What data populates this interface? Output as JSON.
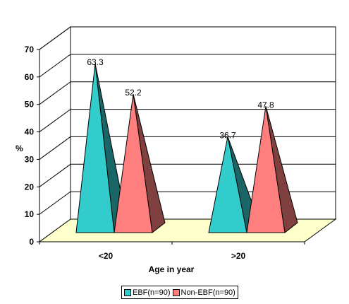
{
  "chart_data": {
    "type": "bar",
    "variant": "3d-pyramid",
    "categories": [
      "<20",
      ">20"
    ],
    "series": [
      {
        "name": "EBF(n=90)",
        "values": [
          63.3,
          36.7
        ],
        "color": "#33CCCC"
      },
      {
        "name": "Non-EBF(n=90)",
        "values": [
          52.2,
          47.8
        ],
        "color": "#FF7F7F"
      }
    ],
    "data_labels": [
      "63.3",
      "52.2",
      "36.7",
      "47.8"
    ],
    "xlabel": "Age in year",
    "ylabel": "%",
    "ylim": [
      0,
      70
    ],
    "yticks": [
      "0",
      "10",
      "20",
      "30",
      "40",
      "50",
      "60",
      "70"
    ],
    "grid": true,
    "legend_position": "bottom",
    "floor_color": "#FFFFCC"
  }
}
